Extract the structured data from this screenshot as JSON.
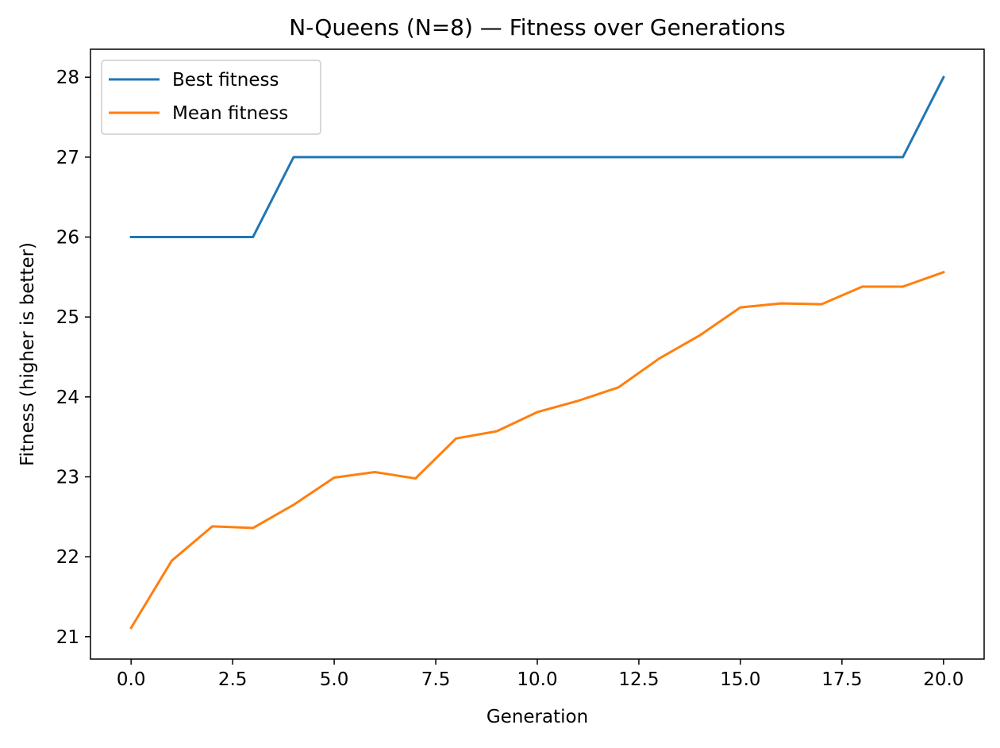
{
  "chart_data": {
    "type": "line",
    "title": "N-Queens (N=8) — Fitness over Generations",
    "xlabel": "Generation",
    "ylabel": "Fitness (higher is better)",
    "xlim": [
      -1.0,
      21.0
    ],
    "ylim": [
      20.72,
      28.35
    ],
    "xticks": [
      0.0,
      2.5,
      5.0,
      7.5,
      10.0,
      12.5,
      15.0,
      17.5,
      20.0
    ],
    "xtick_labels": [
      "0.0",
      "2.5",
      "5.0",
      "7.5",
      "10.0",
      "12.5",
      "15.0",
      "17.5",
      "20.0"
    ],
    "yticks": [
      21,
      22,
      23,
      24,
      25,
      26,
      27,
      28
    ],
    "ytick_labels": [
      "21",
      "22",
      "23",
      "24",
      "25",
      "26",
      "27",
      "28"
    ],
    "grid": false,
    "legend_position": "top-left",
    "x": [
      0,
      1,
      2,
      3,
      4,
      5,
      6,
      7,
      8,
      9,
      10,
      11,
      12,
      13,
      14,
      15,
      16,
      17,
      18,
      19,
      20
    ],
    "series": [
      {
        "name": "Best fitness",
        "color": "#1f77b4",
        "values": [
          26,
          26,
          26,
          26,
          27,
          27,
          27,
          27,
          27,
          27,
          27,
          27,
          27,
          27,
          27,
          27,
          27,
          27,
          27,
          27,
          28
        ]
      },
      {
        "name": "Mean fitness",
        "color": "#ff7f0e",
        "values": [
          21.11,
          21.95,
          22.38,
          22.36,
          22.65,
          22.99,
          23.06,
          22.98,
          23.48,
          23.57,
          23.81,
          23.95,
          24.12,
          24.48,
          24.77,
          25.12,
          25.17,
          25.16,
          25.38,
          25.38,
          25.56
        ]
      }
    ]
  }
}
